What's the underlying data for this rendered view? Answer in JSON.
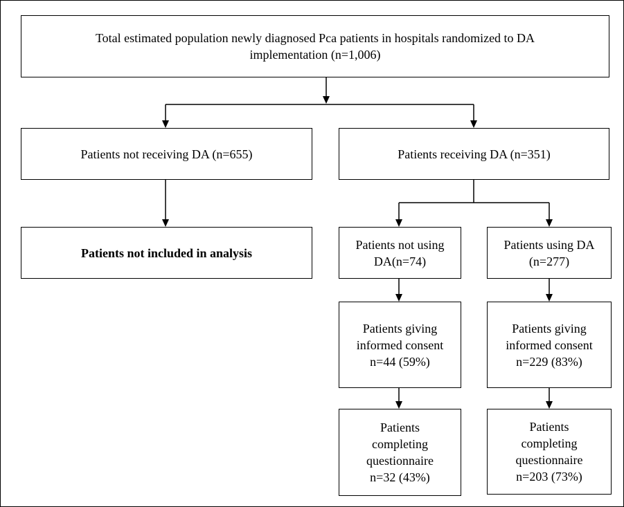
{
  "diagram": {
    "total_population": "Total estimated population newly diagnosed Pca patients in hospitals randomized to DA implementation (n=1,006)",
    "not_receiving": "Patients not receiving DA (n=655)",
    "receiving": "Patients receiving DA (n=351)",
    "not_included": "Patients not included in analysis",
    "not_using": "Patients  not using\nDA(n=74)",
    "using": "Patients using DA\n(n=277)",
    "consent_not_using": "Patients giving\ninformed consent\nn=44 (59%)",
    "consent_using": "Patients giving\ninformed consent\nn=229 (83%)",
    "questionnaire_not_using": "Patients\ncompleting\nquestionnaire\nn=32 (43%)",
    "questionnaire_using": "Patients\ncompleting\nquestionnaire\nn=203 (73%)"
  }
}
